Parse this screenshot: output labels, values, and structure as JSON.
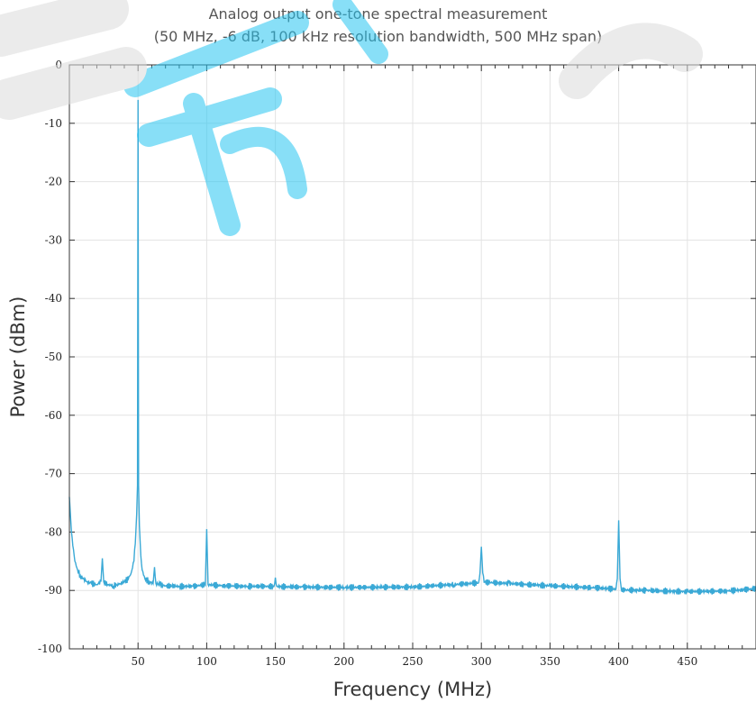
{
  "chart_data": {
    "type": "line",
    "title": "Analog output one-tone spectral measurement",
    "subtitle": "(50 MHz, -6 dB, 100 kHz resolution bandwidth, 500 MHz span)",
    "xlabel": "Frequency (MHz)",
    "ylabel": "Power (dBm)",
    "xlim": [
      0,
      500
    ],
    "ylim": [
      -100,
      0
    ],
    "x_ticks": [
      50,
      100,
      150,
      200,
      250,
      300,
      350,
      400,
      450
    ],
    "y_ticks": [
      0,
      -10,
      -20,
      -30,
      -40,
      -50,
      -60,
      -70,
      -80,
      -90,
      -100
    ],
    "grid": true,
    "colors": {
      "series": "#3aa9d6",
      "watermark": "#27c6f2",
      "grid": "#e3e3e3",
      "frame": "#333333"
    },
    "series": [
      {
        "x": [
          0,
          1,
          2,
          3,
          4,
          6,
          8,
          10,
          13,
          16,
          20,
          23,
          24,
          25,
          28,
          32,
          36,
          40,
          43,
          45,
          47,
          48,
          49,
          49.6,
          50,
          50.4,
          51,
          52,
          53,
          55,
          58,
          61,
          62,
          63,
          66,
          70,
          80,
          90,
          99,
          100,
          101,
          110,
          130,
          149,
          150,
          151,
          160,
          170,
          200,
          250,
          280,
          298,
          299,
          300,
          301,
          302,
          320,
          350,
          380,
          398,
          399,
          400,
          401,
          402,
          420,
          450,
          480,
          500
        ],
        "y": [
          -74,
          -78,
          -81,
          -83,
          -85,
          -86.5,
          -87.5,
          -88,
          -88.5,
          -88.8,
          -89,
          -88.5,
          -84.5,
          -88.5,
          -89,
          -89.2,
          -89,
          -88.5,
          -88,
          -87,
          -85,
          -82,
          -77,
          -72,
          -6,
          -72,
          -79,
          -84,
          -86.5,
          -88,
          -88.5,
          -88.8,
          -86,
          -88.8,
          -89,
          -89.2,
          -89.3,
          -89.3,
          -89,
          -79.5,
          -89,
          -89.2,
          -89.3,
          -89.3,
          -87.8,
          -89.3,
          -89.4,
          -89.4,
          -89.5,
          -89.4,
          -89,
          -88.7,
          -87,
          -82.5,
          -87,
          -88.6,
          -88.8,
          -89.2,
          -89.5,
          -89.8,
          -88,
          -78,
          -88,
          -89.9,
          -90,
          -90.2,
          -90.1,
          -89.7
        ]
      }
    ]
  }
}
